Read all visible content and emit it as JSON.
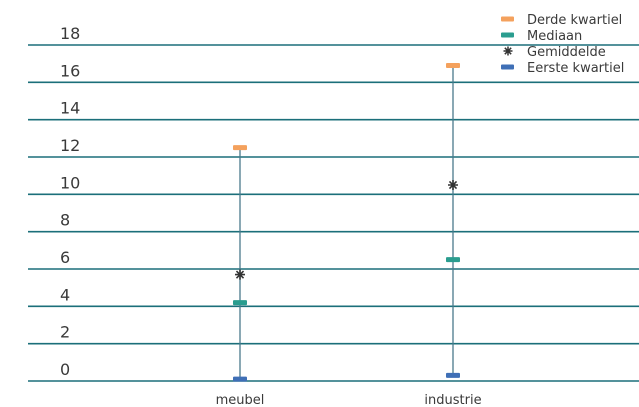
{
  "chart_data": {
    "type": "scatter",
    "title": "",
    "xlabel": "",
    "ylabel": "",
    "ylim": [
      0,
      18
    ],
    "yticks": [
      0,
      2,
      4,
      6,
      8,
      10,
      12,
      14,
      16,
      18
    ],
    "grid": true,
    "legend_position": "top-right",
    "categories": [
      "meubel",
      "industrie"
    ],
    "series": [
      {
        "name": "Derde kwartiel",
        "marker": "dash",
        "color": "#f4a15d",
        "values": [
          12.5,
          16.9
        ]
      },
      {
        "name": "Mediaan",
        "marker": "dash",
        "color": "#2a9d8f",
        "values": [
          4.2,
          6.5
        ]
      },
      {
        "name": "Gemiddelde",
        "marker": "star",
        "color": "#333333",
        "values": [
          5.7,
          10.5
        ]
      },
      {
        "name": "Eerste kwartiel",
        "marker": "dash",
        "color": "#3f6fb6",
        "values": [
          0.1,
          0.3
        ]
      }
    ],
    "range_lines": [
      {
        "category": "meubel",
        "from": 0.1,
        "to": 12.5
      },
      {
        "category": "industrie",
        "from": 0.3,
        "to": 16.9
      }
    ]
  }
}
